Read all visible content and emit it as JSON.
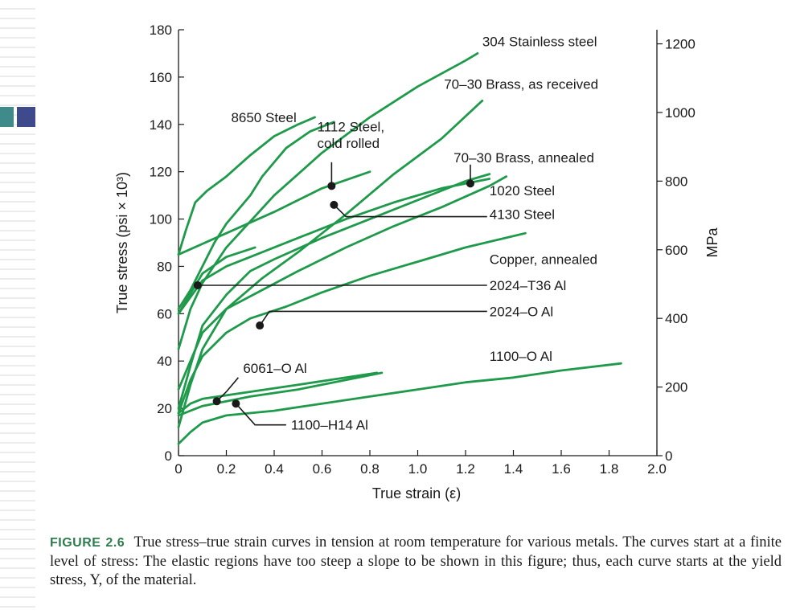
{
  "chart_data": {
    "type": "line",
    "xlabel": "True strain (ε)",
    "ylabel_left": "True stress (psi × 10³)",
    "ylabel_right": "MPa",
    "xlim": [
      0,
      2.0
    ],
    "ylim": [
      0,
      180
    ],
    "x_ticks": [
      "0",
      "0.2",
      "0.4",
      "0.6",
      "0.8",
      "1.0",
      "1.2",
      "1.4",
      "1.6",
      "1.8",
      "2.0"
    ],
    "y_ticks": [
      "0",
      "20",
      "40",
      "60",
      "80",
      "100",
      "120",
      "140",
      "160",
      "180"
    ],
    "y2_ticks": [
      "0",
      "200",
      "400",
      "600",
      "800",
      "1000",
      "1200"
    ],
    "y2_values": [
      0,
      200,
      400,
      600,
      800,
      1000,
      1200
    ],
    "mpa_per_ksi": 6.895,
    "line_color": "#1f9a4b",
    "series": [
      {
        "name": "304 Stainless steel",
        "points": [
          [
            0,
            45
          ],
          [
            0.05,
            62
          ],
          [
            0.1,
            73
          ],
          [
            0.2,
            88
          ],
          [
            0.4,
            110
          ],
          [
            0.6,
            128
          ],
          [
            0.8,
            143
          ],
          [
            1.0,
            156
          ],
          [
            1.2,
            167
          ],
          [
            1.25,
            170
          ]
        ]
      },
      {
        "name": "70–30 Brass, as received",
        "points": [
          [
            0,
            62
          ],
          [
            0.05,
            70
          ],
          [
            0.1,
            80
          ],
          [
            0.15,
            90
          ],
          [
            0.2,
            98
          ],
          [
            0.3,
            110
          ],
          [
            0.35,
            118
          ],
          [
            0.45,
            130
          ],
          [
            0.55,
            137
          ],
          [
            0.6,
            139
          ],
          [
            0.65,
            141
          ]
        ]
      },
      {
        "name": "8650 Steel",
        "points": [
          [
            0,
            85
          ],
          [
            0.03,
            95
          ],
          [
            0.07,
            107
          ],
          [
            0.12,
            112
          ],
          [
            0.2,
            118
          ],
          [
            0.3,
            127
          ],
          [
            0.4,
            135
          ],
          [
            0.5,
            140
          ],
          [
            0.57,
            143
          ]
        ]
      },
      {
        "name": "1112 Steel, cold rolled",
        "points": [
          [
            0,
            85
          ],
          [
            0.2,
            94
          ],
          [
            0.4,
            103
          ],
          [
            0.6,
            113
          ],
          [
            0.8,
            120
          ]
        ]
      },
      {
        "name": "70–30 Brass, annealed",
        "points": [
          [
            0,
            12
          ],
          [
            0.05,
            30
          ],
          [
            0.1,
            45
          ],
          [
            0.2,
            62
          ],
          [
            0.35,
            75
          ],
          [
            0.5,
            86
          ],
          [
            0.7,
            102
          ],
          [
            0.9,
            119
          ],
          [
            1.1,
            134
          ],
          [
            1.27,
            150
          ]
        ]
      },
      {
        "name": "1020 Steel",
        "points": [
          [
            0,
            60
          ],
          [
            0.1,
            74
          ],
          [
            0.2,
            80
          ],
          [
            0.3,
            84
          ],
          [
            0.5,
            92
          ],
          [
            0.7,
            100
          ],
          [
            0.9,
            107
          ],
          [
            1.1,
            113
          ],
          [
            1.3,
            117
          ]
        ]
      },
      {
        "name": "4130 Steel",
        "points": [
          [
            0,
            60
          ],
          [
            0.1,
            77
          ],
          [
            0.2,
            84
          ],
          [
            0.32,
            88
          ]
        ]
      },
      {
        "name": "Copper, annealed",
        "points": [
          [
            0,
            28
          ],
          [
            0.05,
            40
          ],
          [
            0.1,
            52
          ],
          [
            0.2,
            62
          ],
          [
            0.35,
            70
          ],
          [
            0.5,
            78
          ],
          [
            0.7,
            88
          ],
          [
            0.9,
            97
          ],
          [
            1.1,
            105
          ],
          [
            1.3,
            114
          ],
          [
            1.37,
            118
          ]
        ]
      },
      {
        "name": "2024–T36 Al",
        "points": [
          [
            0,
            20
          ],
          [
            0.05,
            38
          ],
          [
            0.1,
            55
          ],
          [
            0.2,
            68
          ],
          [
            0.3,
            78
          ],
          [
            0.4,
            83
          ],
          [
            0.6,
            92
          ],
          [
            0.8,
            100
          ],
          [
            1.0,
            108
          ],
          [
            1.2,
            116
          ],
          [
            1.3,
            119
          ]
        ]
      },
      {
        "name": "2024–O Al",
        "points": [
          [
            0,
            18
          ],
          [
            0.05,
            32
          ],
          [
            0.1,
            42
          ],
          [
            0.2,
            52
          ],
          [
            0.3,
            58
          ],
          [
            0.45,
            63
          ],
          [
            0.6,
            69
          ],
          [
            0.8,
            76
          ],
          [
            1.0,
            82
          ],
          [
            1.2,
            88
          ],
          [
            1.45,
            94
          ]
        ]
      },
      {
        "name": "6061–O Al",
        "points": [
          [
            0,
            18
          ],
          [
            0.05,
            22
          ],
          [
            0.1,
            24
          ],
          [
            0.3,
            27
          ],
          [
            0.5,
            30
          ],
          [
            0.7,
            33
          ],
          [
            0.83,
            35
          ]
        ]
      },
      {
        "name": "1100–H14 Al",
        "points": [
          [
            0,
            17
          ],
          [
            0.1,
            21
          ],
          [
            0.3,
            25
          ],
          [
            0.5,
            28
          ],
          [
            0.7,
            32
          ],
          [
            0.85,
            35
          ]
        ]
      },
      {
        "name": "1100–O Al",
        "points": [
          [
            0,
            5
          ],
          [
            0.05,
            10
          ],
          [
            0.1,
            14
          ],
          [
            0.2,
            17
          ],
          [
            0.4,
            19
          ],
          [
            0.6,
            22
          ],
          [
            0.8,
            25
          ],
          [
            1.0,
            28
          ],
          [
            1.2,
            31
          ],
          [
            1.4,
            33
          ],
          [
            1.6,
            36
          ],
          [
            1.85,
            39
          ]
        ]
      }
    ],
    "curve_labels": [
      {
        "text": "304 Stainless steel",
        "x": 1.27,
        "y": 173
      },
      {
        "text": "70–30 Brass, as received",
        "x": 1.11,
        "y": 155
      },
      {
        "text": "8650 Steel",
        "x": 0.22,
        "y": 141
      },
      {
        "text": "1112 Steel,",
        "x": 0.58,
        "y": 137
      },
      {
        "text": "cold rolled",
        "x": 0.58,
        "y": 130
      },
      {
        "text": "70–30 Brass, annealed",
        "x": 1.15,
        "y": 124
      },
      {
        "text": "1020 Steel",
        "x": 1.3,
        "y": 110
      },
      {
        "text": "4130 Steel",
        "x": 1.3,
        "y": 100
      },
      {
        "text": "Copper, annealed",
        "x": 1.3,
        "y": 81
      },
      {
        "text": "2024–T36 Al",
        "x": 1.3,
        "y": 70
      },
      {
        "text": "2024–O Al",
        "x": 1.3,
        "y": 59
      },
      {
        "text": "1100–O Al",
        "x": 1.3,
        "y": 40
      },
      {
        "text": "6061–O Al",
        "x": 0.27,
        "y": 35
      },
      {
        "text": "1100–H14 Al",
        "x": 0.47,
        "y": 11
      }
    ],
    "callouts": [
      {
        "label": "1112 Steel, cold rolled",
        "dot": [
          0.64,
          114
        ],
        "path": [
          [
            0.64,
            114
          ],
          [
            0.64,
            124
          ]
        ]
      },
      {
        "label": "70–30 Brass, annealed",
        "dot": [
          1.22,
          115
        ],
        "path": [
          [
            1.22,
            115
          ],
          [
            1.22,
            123
          ]
        ]
      },
      {
        "label": "4130 Steel",
        "dot": [
          0.65,
          106
        ],
        "path": [
          [
            0.65,
            106
          ],
          [
            0.7,
            101
          ],
          [
            1.29,
            101
          ]
        ]
      },
      {
        "label": "2024–T36 Al",
        "dot": [
          0.08,
          72
        ],
        "path": [
          [
            0.08,
            72
          ],
          [
            1.29,
            72
          ]
        ]
      },
      {
        "label": "2024–O Al",
        "dot": [
          0.34,
          55
        ],
        "path": [
          [
            0.34,
            55
          ],
          [
            0.38,
            61
          ],
          [
            1.29,
            61
          ]
        ]
      },
      {
        "label": "6061–O Al",
        "dot": [
          0.16,
          23
        ],
        "path": [
          [
            0.16,
            23
          ],
          [
            0.2,
            27
          ],
          [
            0.25,
            33
          ]
        ]
      },
      {
        "label": "1100–H14 Al",
        "dot": [
          0.24,
          22
        ],
        "path": [
          [
            0.24,
            22
          ],
          [
            0.32,
            13
          ],
          [
            0.45,
            13
          ]
        ]
      }
    ]
  },
  "caption": {
    "label": "FIGURE 2.6",
    "text": "True stress–true strain curves in tension at room temperature for various metals. The curves start at a finite level of stress: The elastic regions have too steep a slope to be shown in this figure; thus, each curve starts at the yield stress, Y, of the material."
  }
}
